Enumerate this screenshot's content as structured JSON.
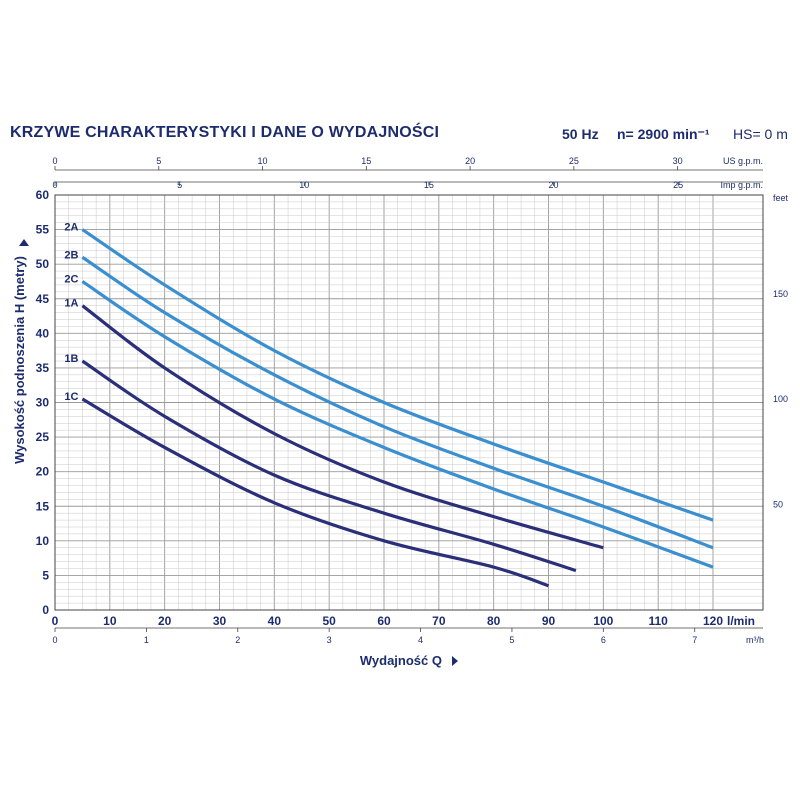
{
  "header": {
    "title": "KRZYWE CHARAKTERYSTYKI I DANE O WYDAJNOŚCI",
    "frequency": "50 Hz",
    "speed": "n= 2900 min⁻¹",
    "suction_head": "HS= 0 m"
  },
  "colors": {
    "series_a_b": "#3a8fd0",
    "series_c": "#2b2f7a",
    "grid": "#c8c8c8",
    "text": "#1d2c6e"
  },
  "chart_data": {
    "type": "line",
    "title": "",
    "xlabel": "Wydajność Q",
    "ylabel": "Wysokość podnoszenia  H  (metry)",
    "xlim": [
      0,
      120
    ],
    "ylim": [
      0,
      60
    ],
    "grid": true,
    "x_unit": "l/min",
    "x_ticks": [
      0,
      10,
      20,
      30,
      40,
      50,
      60,
      70,
      80,
      90,
      100,
      110,
      120
    ],
    "y_ticks": [
      0,
      5,
      10,
      15,
      20,
      25,
      30,
      35,
      40,
      45,
      50,
      55,
      60
    ],
    "secondary_axes": {
      "top_us": {
        "label": "US g.p.m.",
        "ticks": [
          0,
          5,
          10,
          15,
          20,
          25,
          30
        ]
      },
      "top_imp": {
        "label": "Imp g.p.m.",
        "ticks": [
          0,
          5,
          10,
          15,
          20,
          25
        ]
      },
      "bottom_m3h": {
        "label": "m³/h",
        "ticks": [
          0,
          1,
          2,
          3,
          4,
          5,
          6,
          7
        ]
      },
      "right_feet": {
        "label": "feet",
        "ticks": [
          50,
          100,
          150
        ]
      }
    },
    "series": [
      {
        "name": "2A",
        "color": "#3a8fd0",
        "x": [
          5,
          20,
          40,
          60,
          80,
          100,
          120
        ],
        "y": [
          55,
          47,
          37.5,
          30,
          24,
          18.5,
          13
        ]
      },
      {
        "name": "2B",
        "color": "#3a8fd0",
        "x": [
          5,
          20,
          40,
          60,
          80,
          100,
          120
        ],
        "y": [
          51,
          43,
          34,
          26.5,
          20.5,
          15,
          9
        ]
      },
      {
        "name": "2C",
        "color": "#3a8fd0",
        "x": [
          5,
          20,
          40,
          60,
          80,
          100,
          120
        ],
        "y": [
          47.5,
          39.5,
          30.5,
          23.5,
          17.5,
          12,
          6.2
        ]
      },
      {
        "name": "1A",
        "color": "#2b2f7a",
        "x": [
          5,
          20,
          40,
          60,
          80,
          100
        ],
        "y": [
          44,
          35,
          25.5,
          18.5,
          13.5,
          9
        ]
      },
      {
        "name": "1B",
        "color": "#2b2f7a",
        "x": [
          5,
          20,
          40,
          60,
          80,
          95
        ],
        "y": [
          36,
          28,
          19.5,
          14,
          9.5,
          5.7
        ]
      },
      {
        "name": "1C",
        "color": "#2b2f7a",
        "x": [
          5,
          20,
          40,
          60,
          80,
          90
        ],
        "y": [
          30.5,
          23.5,
          15.5,
          10,
          6.2,
          3.5
        ]
      }
    ]
  }
}
